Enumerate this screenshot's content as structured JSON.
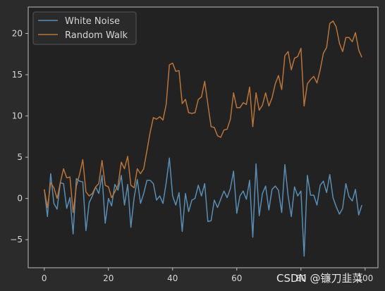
{
  "chart_data": {
    "type": "line",
    "title": "",
    "xlabel": "",
    "ylabel": "",
    "xlim": [
      -5,
      104
    ],
    "ylim": [
      -8.4,
      23.2
    ],
    "grid": false,
    "legend_position": "top-left",
    "x_ticks": [
      0,
      20,
      40,
      60,
      80,
      100
    ],
    "y_ticks": [
      -5,
      0,
      5,
      10,
      15,
      20
    ],
    "x": [
      0,
      1,
      2,
      3,
      4,
      5,
      6,
      7,
      8,
      9,
      10,
      11,
      12,
      13,
      14,
      15,
      16,
      17,
      18,
      19,
      20,
      21,
      22,
      23,
      24,
      25,
      26,
      27,
      28,
      29,
      30,
      31,
      32,
      33,
      34,
      35,
      36,
      37,
      38,
      39,
      40,
      41,
      42,
      43,
      44,
      45,
      46,
      47,
      48,
      49,
      50,
      51,
      52,
      53,
      54,
      55,
      56,
      57,
      58,
      59,
      60,
      61,
      62,
      63,
      64,
      65,
      66,
      67,
      68,
      69,
      70,
      71,
      72,
      73,
      74,
      75,
      76,
      77,
      78,
      79,
      80,
      81,
      82,
      83,
      84,
      85,
      86,
      87,
      88,
      89,
      90,
      91,
      92,
      93,
      94,
      95,
      96,
      97,
      98,
      99
    ],
    "series": [
      {
        "name": "White Noise",
        "color": "#5a8db3",
        "values": [
          1.1,
          -2.2,
          3.0,
          -0.6,
          -1.3,
          1.9,
          1.8,
          -1.2,
          0.1,
          -4.3,
          2.4,
          2.1,
          2.0,
          -3.9,
          -0.5,
          0.3,
          1.4,
          0.6,
          2.8,
          -3.0,
          0.0,
          -0.9,
          1.7,
          1.0,
          2.8,
          -0.8,
          1.7,
          -3.5,
          0.1,
          2.3,
          -0.6,
          0.6,
          2.2,
          2.2,
          1.8,
          -0.2,
          0.3,
          -0.6,
          1.9,
          4.9,
          0.3,
          -0.8,
          0.7,
          -4.0,
          0.6,
          -1.6,
          -0.2,
          0.0,
          1.6,
          0.3,
          1.8,
          -2.8,
          -2.7,
          -0.2,
          -1.1,
          -0.1,
          0.9,
          0.1,
          1.2,
          3.3,
          -1.8,
          0.3,
          0.9,
          -0.1,
          2.2,
          -4.7,
          4.2,
          -2.1,
          0.6,
          1.5,
          -1.4,
          1.1,
          1.5,
          1.0,
          -1.7,
          4.1,
          0.3,
          -2.2,
          1.4,
          0.3,
          0.9,
          -7.0,
          2.8,
          0.4,
          0.4,
          -0.8,
          1.6,
          2.1,
          0.7,
          2.9,
          0.1,
          -1.0,
          -1.9,
          -1.2,
          1.8,
          0.2,
          -0.3,
          1.1,
          -2.0,
          -0.8
        ]
      },
      {
        "name": "Random Walk",
        "color": "#b8743a",
        "values": [
          1.1,
          -1.1,
          1.9,
          1.3,
          0.0,
          1.9,
          3.6,
          2.5,
          2.6,
          -1.7,
          1.5,
          2.9,
          4.7,
          0.8,
          0.3,
          0.6,
          1.4,
          1.8,
          4.6,
          1.6,
          1.4,
          0.1,
          0.8,
          1.6,
          4.4,
          3.6,
          5.1,
          1.6,
          1.3,
          3.6,
          3.0,
          3.6,
          5.8,
          8.0,
          9.8,
          9.6,
          9.9,
          9.5,
          11.4,
          16.2,
          16.4,
          15.4,
          15.5,
          11.5,
          12.0,
          10.4,
          10.3,
          10.4,
          12.0,
          12.3,
          14.2,
          11.4,
          8.7,
          8.6,
          7.6,
          7.4,
          8.3,
          8.4,
          9.6,
          12.8,
          11.0,
          11.0,
          11.6,
          11.4,
          13.5,
          8.7,
          12.8,
          10.7,
          11.3,
          12.8,
          11.2,
          12.2,
          13.9,
          14.9,
          13.2,
          17.3,
          17.8,
          15.6,
          17.0,
          17.2,
          18.2,
          11.2,
          13.9,
          14.4,
          14.8,
          14.0,
          15.6,
          17.6,
          18.3,
          21.2,
          21.5,
          20.8,
          18.8,
          17.8,
          19.5,
          19.5,
          19.0,
          20.1,
          18.0,
          17.1
        ]
      }
    ]
  },
  "watermark": "CSDN @镰刀韭菜"
}
